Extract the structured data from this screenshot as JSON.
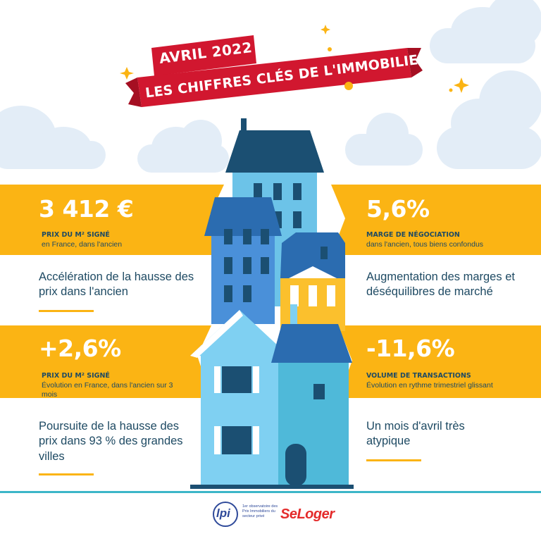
{
  "header": {
    "line1": "AVRIL 2022",
    "line2": "LES CHIFFRES CLÉS DE L'IMMOBILIER",
    "banner_color": "#d1172f"
  },
  "stats": [
    {
      "value": "3 412 €",
      "label": "PRIX DU M² SIGNÉ",
      "sub": "en France, dans l'ancien",
      "description": "Accélération de la hausse des prix dans l'ancien"
    },
    {
      "value": "5,6%",
      "label": "MARGE DE NÉGOCIATION",
      "sub": "dans l'ancien, tous biens confondus",
      "description": "Augmentation des marges et déséquilibres de marché"
    },
    {
      "value": "+2,6%",
      "label": "PRIX DU M² SIGNÉ",
      "sub": "Évolution en France, dans l'ancien sur 3 mois",
      "description": "Poursuite de la hausse des prix dans 93 % des grandes villes"
    },
    {
      "value": "-11,6%",
      "label": "VOLUME DE TRANSACTIONS",
      "sub": "Évolution en rythme trimestriel glissant",
      "description": "Un mois d'avril très atypique"
    }
  ],
  "footer": {
    "logo_ipi": "lpi",
    "observatory": "1er observatoire des Prix Immobiliers du secteur privé",
    "brand": "SeLoger"
  },
  "colors": {
    "accent": "#fbb414",
    "text": "#1e4a63",
    "banner": "#d1172f",
    "footer_line": "#3cb6c8",
    "seloger": "#e42b2b"
  }
}
